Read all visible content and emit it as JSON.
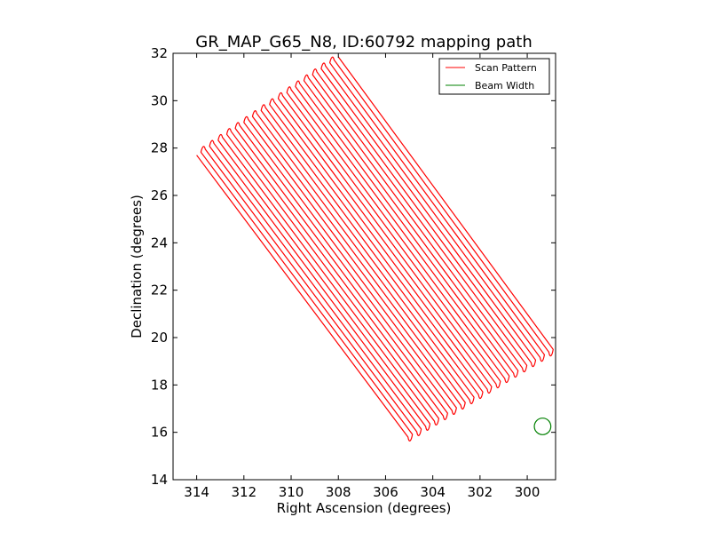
{
  "chart_data": {
    "type": "line",
    "title": "GR_MAP_G65_N8, ID:60792 mapping path",
    "xlabel": "Right Ascension (degrees)",
    "ylabel": "Declination (degrees)",
    "xlim": [
      315,
      298.8
    ],
    "ylim": [
      14,
      32
    ],
    "x_reversed": true,
    "xticks": [
      314,
      312,
      310,
      308,
      306,
      304,
      302,
      300
    ],
    "xtick_labels": [
      "314",
      "312",
      "310",
      "308",
      "306",
      "304",
      "302",
      "300"
    ],
    "yticks": [
      14,
      16,
      18,
      20,
      22,
      24,
      26,
      28,
      30,
      32
    ],
    "ytick_labels": [
      "14",
      "16",
      "18",
      "20",
      "22",
      "24",
      "26",
      "28",
      "30",
      "32"
    ],
    "grid": false,
    "legend_position": "top-right",
    "series": [
      {
        "name": "Scan Pattern",
        "color": "#ff0000",
        "pattern": "boustrophedon",
        "legs": 34,
        "start_first_leg": [
          314.0,
          27.7
        ],
        "end_first_leg": [
          305.05,
          15.8
        ],
        "start_last_leg": [
          308.0,
          31.85
        ],
        "end_last_leg": [
          298.9,
          19.5
        ]
      },
      {
        "name": "Beam Width",
        "color": "#008000",
        "center": [
          299.35,
          16.25
        ],
        "radius": 0.35
      }
    ]
  }
}
